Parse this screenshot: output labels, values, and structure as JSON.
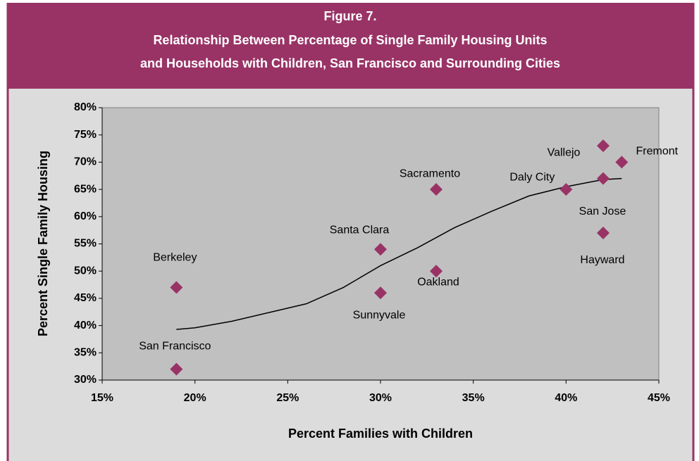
{
  "chart_data": {
    "type": "scatter",
    "title": [
      "Figure 7.",
      "Relationship Between Percentage of Single Family Housing Units",
      "and Households with Children, San Francisco and Surrounding Cities"
    ],
    "xlabel": "Percent Families with Children",
    "ylabel": "Percent Single Family Housing",
    "color": "#993366",
    "points": [
      {
        "name": "San Francisco",
        "x": 19,
        "y": 32
      },
      {
        "name": "Berkeley",
        "x": 19,
        "y": 47
      },
      {
        "name": "Santa Clara",
        "x": 30,
        "y": 54
      },
      {
        "name": "Sunnyvale",
        "x": 30,
        "y": 46
      },
      {
        "name": "Sacramento",
        "x": 33,
        "y": 65
      },
      {
        "name": "Oakland",
        "x": 33,
        "y": 50
      },
      {
        "name": "Daly City",
        "x": 40,
        "y": 65
      },
      {
        "name": "Vallejo",
        "x": 42,
        "y": 73
      },
      {
        "name": "Fremont",
        "x": 43,
        "y": 70
      },
      {
        "name": "San Jose",
        "x": 42,
        "y": 67
      },
      {
        "name": "Hayward",
        "x": 42,
        "y": 57
      }
    ],
    "trendline": {
      "x": [
        19,
        20,
        22,
        24,
        26,
        28,
        30,
        32,
        34,
        36,
        38,
        40,
        42,
        43
      ],
      "values": [
        39.3,
        39.6,
        40.8,
        42.4,
        44,
        47,
        51,
        54.3,
        58,
        61,
        63.8,
        65.5,
        66.8,
        67
      ]
    },
    "xlim": [
      15,
      45
    ],
    "ylim": [
      30,
      80
    ],
    "xticks": [
      {
        "value": 15,
        "label": "15%"
      },
      {
        "value": 20,
        "label": "20%"
      },
      {
        "value": 25,
        "label": "25%"
      },
      {
        "value": 30,
        "label": "30%"
      },
      {
        "value": 35,
        "label": "35%"
      },
      {
        "value": 40,
        "label": "40%"
      },
      {
        "value": 45,
        "label": "45%"
      }
    ],
    "yticks": [
      {
        "value": 30,
        "label": "30%"
      },
      {
        "value": 35,
        "label": "35%"
      },
      {
        "value": 40,
        "label": "40%"
      },
      {
        "value": 45,
        "label": "45%"
      },
      {
        "value": 50,
        "label": "50%"
      },
      {
        "value": 55,
        "label": "55%"
      },
      {
        "value": 60,
        "label": "60%"
      },
      {
        "value": 65,
        "label": "65%"
      },
      {
        "value": 70,
        "label": "70%"
      },
      {
        "value": 75,
        "label": "75%"
      },
      {
        "value": 80,
        "label": "80%"
      }
    ]
  }
}
